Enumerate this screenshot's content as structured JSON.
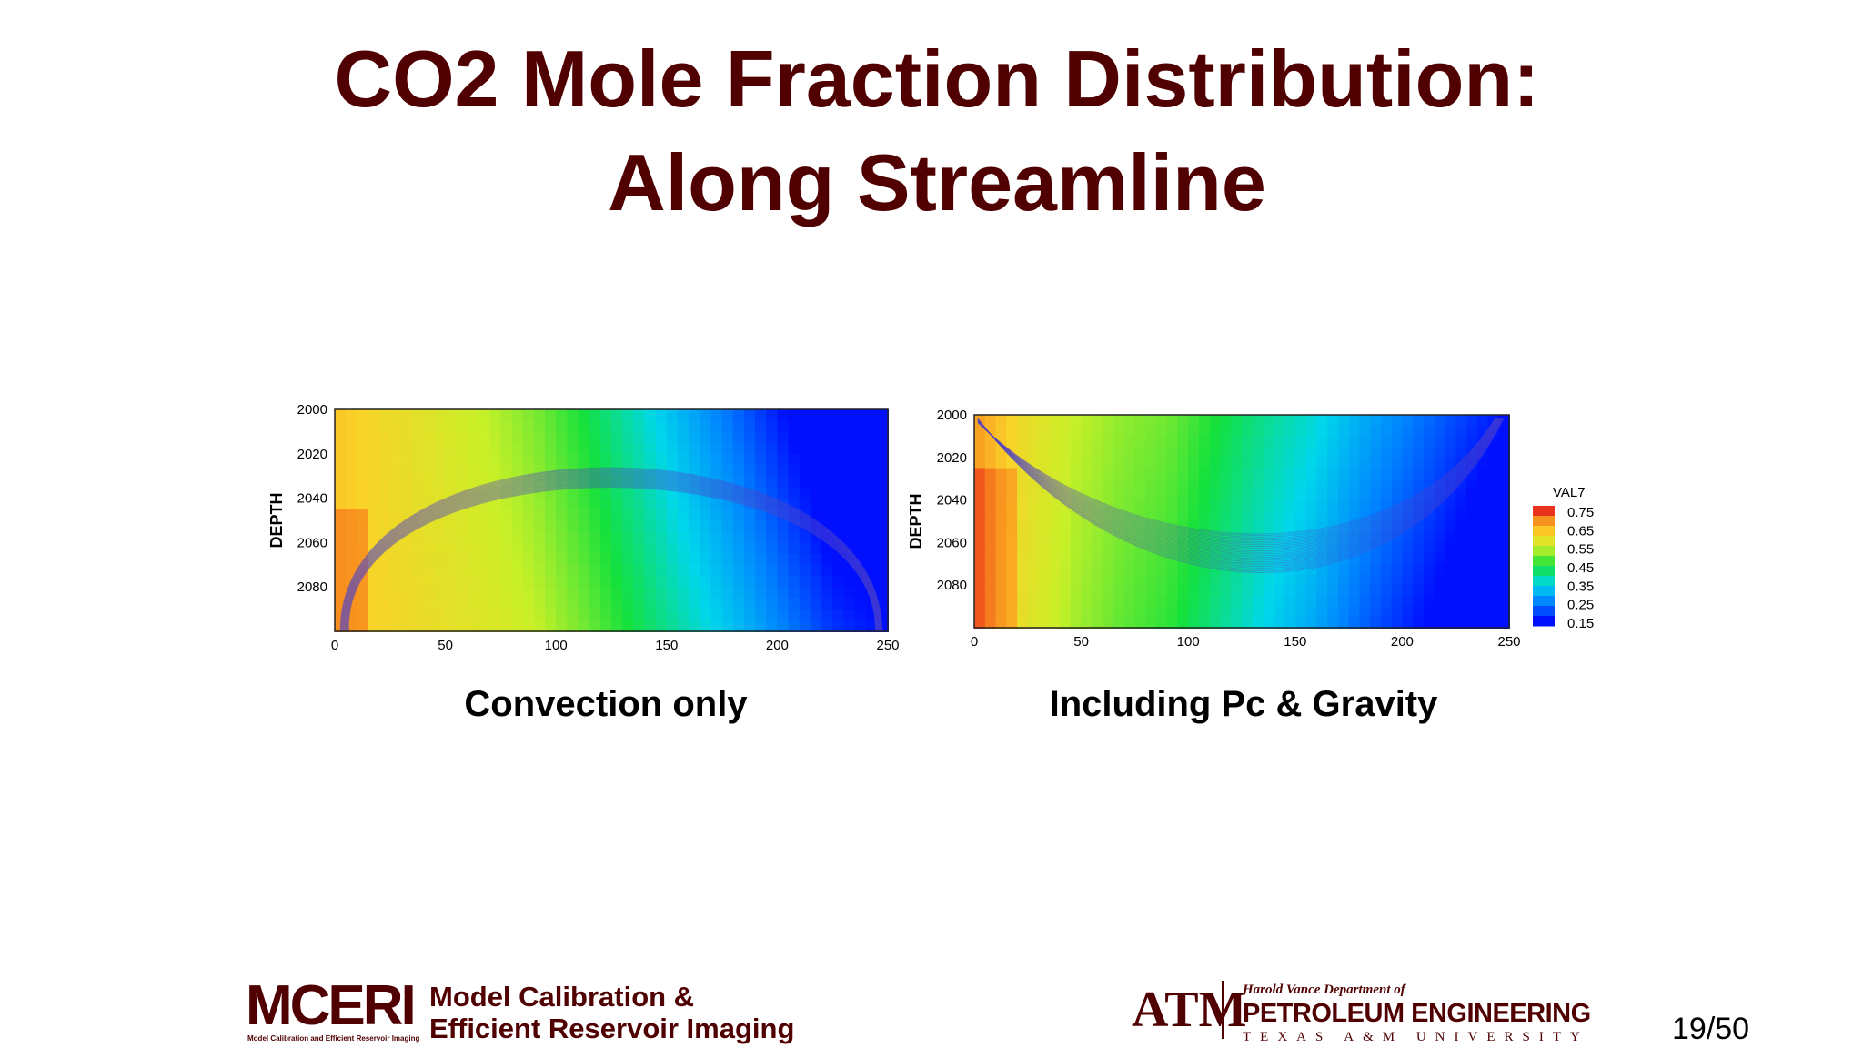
{
  "slide": {
    "title_line1": "CO2 Mole Fraction Distribution:",
    "title_line2": "Along Streamline",
    "page_number": "19/50"
  },
  "chart_data": [
    {
      "type": "heatmap",
      "title": "Convection only",
      "ylabel": "DEPTH",
      "xlabel": "",
      "xlim": [
        0,
        250
      ],
      "ylim": [
        2100,
        2000
      ],
      "xticks": [
        "0",
        "50",
        "100",
        "150",
        "200",
        "250"
      ],
      "yticks": [
        "2000",
        "2020",
        "2040",
        "2060",
        "2080"
      ],
      "description_profile": [
        0.64,
        0.62,
        0.6,
        0.58,
        0.55,
        0.5,
        0.44,
        0.38,
        0.32,
        0.25,
        0.18,
        0.15
      ],
      "colors": {
        "high": "#e8321c",
        "low": "#0010ff"
      }
    },
    {
      "type": "heatmap",
      "title": "Including Pc & Gravity",
      "ylabel": "DEPTH",
      "xlabel": "",
      "xlim": [
        0,
        250
      ],
      "ylim": [
        2100,
        2000
      ],
      "xticks": [
        "0",
        "50",
        "100",
        "150",
        "200",
        "250"
      ],
      "yticks": [
        "2000",
        "2020",
        "2040",
        "2060",
        "2080"
      ],
      "description_profile": [
        0.68,
        0.6,
        0.55,
        0.52,
        0.5,
        0.45,
        0.4,
        0.36,
        0.3,
        0.25,
        0.2,
        0.15
      ],
      "colors": {
        "high": "#e8321c",
        "low": "#0010ff"
      }
    }
  ],
  "colorbar": {
    "label": "VAL7",
    "ticks": [
      "0.75",
      "0.65",
      "0.55",
      "0.45",
      "0.35",
      "0.25",
      "0.15"
    ]
  },
  "footer": {
    "mceri_logo": "MCERI",
    "mceri_subtitle": "Model Calibration and Efficient Reservoir Imaging",
    "mceri_line1": "Model Calibration &",
    "mceri_line2": "Efficient Reservoir Imaging",
    "tamu_logo": "ATM",
    "pe_department": "Harold Vance Department of",
    "pe_name": "PETROLEUM ENGINEERING",
    "pe_university": "TEXAS A&M UNIVERSITY"
  }
}
